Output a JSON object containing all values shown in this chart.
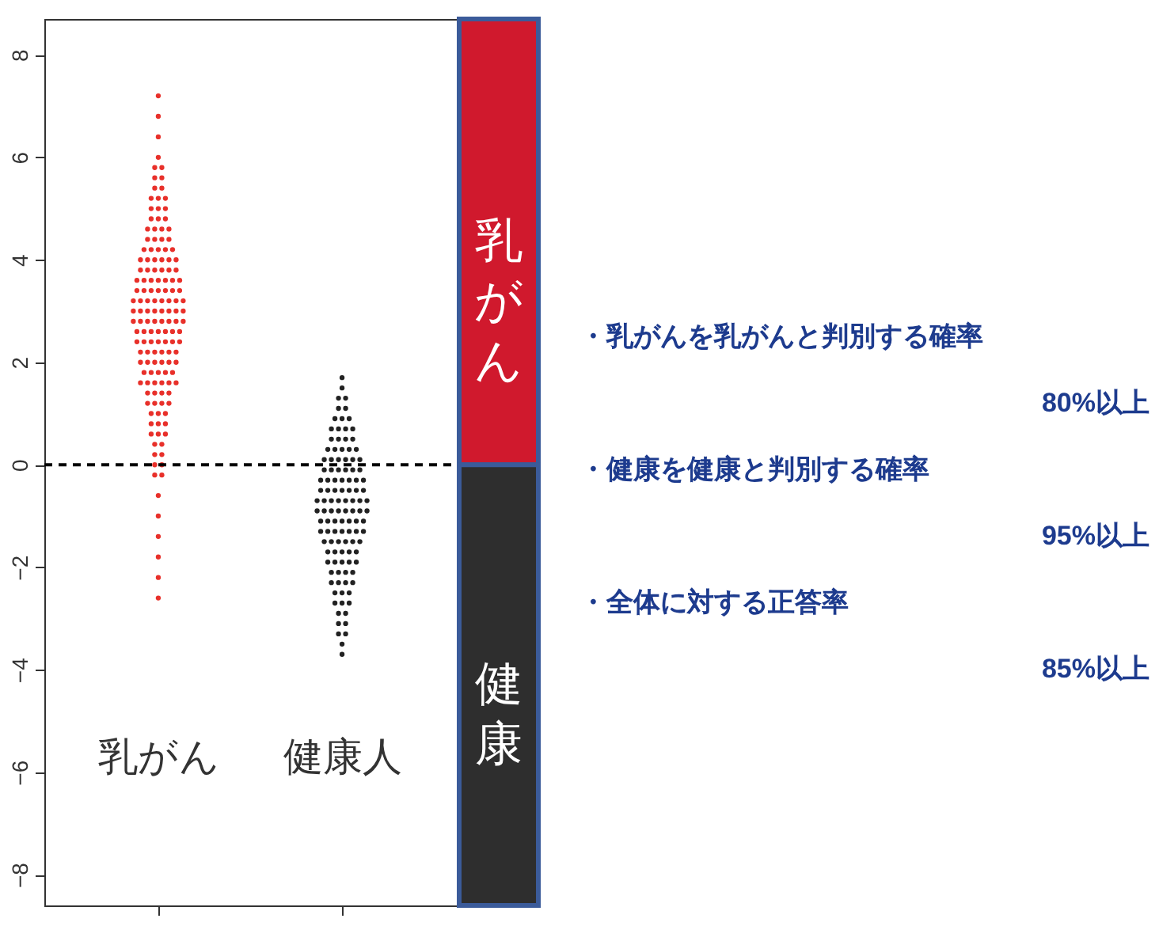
{
  "chart_data": {
    "type": "scatter",
    "marker": "circle",
    "categories": [
      "乳がん",
      "健康人"
    ],
    "ylim": [
      -8.6,
      8.7
    ],
    "yticks": [
      -8,
      -6,
      -4,
      -2,
      0,
      2,
      4,
      6,
      8
    ],
    "series": [
      {
        "color": "#e8302a",
        "x": [
          "乳がん",
          "乳がん",
          "乳がん",
          "乳がん",
          "乳がん",
          "乳がん",
          "乳がん",
          "乳がん",
          "乳がん",
          "乳がん",
          "乳がん",
          "乳がん",
          "乳がん",
          "乳がん",
          "乳がん",
          "乳がん",
          "乳がん",
          "乳がん",
          "乳がん",
          "乳がん",
          "乳がん",
          "乳がん",
          "乳がん",
          "乳がん",
          "乳がん",
          "乳がん",
          "乳がん",
          "乳がん",
          "乳がん",
          "乳がん",
          "乳がん",
          "乳がん",
          "乳がん",
          "乳がん",
          "乳がん",
          "乳がん",
          "乳がん",
          "乳がん",
          "乳がん",
          "乳がん",
          "乳がん",
          "乳がん",
          "乳がん",
          "乳がん",
          "乳がん",
          "乳がん",
          "乳がん",
          "乳がん",
          "乳がん",
          "乳がん",
          "乳がん",
          "乳がん",
          "乳がん",
          "乳がん",
          "乳がん",
          "乳がん",
          "乳がん",
          "乳がん",
          "乳がん",
          "乳がん",
          "乳がん",
          "乳がん",
          "乳がん",
          "乳がん",
          "乳がん",
          "乳がん",
          "乳がん",
          "乳がん",
          "乳がん",
          "乳がん",
          "乳がん",
          "乳がん",
          "乳がん",
          "乳がん",
          "乳がん",
          "乳がん",
          "乳がん",
          "乳がん",
          "乳がん",
          "乳がん",
          "乳がん",
          "乳がん",
          "乳がん",
          "乳がん",
          "乳がん",
          "乳がん",
          "乳がん",
          "乳がん",
          "乳がん",
          "乳がん",
          "乳がん",
          "乳がん",
          "乳がん",
          "乳がん",
          "乳がん",
          "乳がん",
          "乳がん",
          "乳がん",
          "乳がん",
          "乳がん",
          "乳がん",
          "乳がん",
          "乳がん",
          "乳がん",
          "乳がん",
          "乳がん",
          "乳がん",
          "乳がん",
          "乳がん",
          "乳がん",
          "乳がん",
          "乳がん",
          "乳がん",
          "乳がん",
          "乳がん",
          "乳がん",
          "乳がん",
          "乳がん",
          "乳がん",
          "乳がん",
          "乳がん",
          "乳がん",
          "乳がん",
          "乳がん",
          "乳がん",
          "乳がん",
          "乳がん",
          "乳がん",
          "乳がん",
          "乳がん",
          "乳がん",
          "乳がん",
          "乳がん",
          "乳がん",
          "乳がん",
          "乳がん",
          "乳がん",
          "乳がん",
          "乳がん",
          "乳がん",
          "乳がん",
          "乳がん",
          "乳がん",
          "乳がん",
          "乳がん",
          "乳がん",
          "乳がん",
          "乳がん",
          "乳がん",
          "乳がん"
        ],
        "values": [
          -2.6,
          -2.2,
          -1.8,
          -1.4,
          -1.0,
          -0.6,
          -0.2,
          -0.2,
          0,
          0,
          0.2,
          0.2,
          0.4,
          0.4,
          0.6,
          0.6,
          0.6,
          0.8,
          0.8,
          0.8,
          1.0,
          1.0,
          1.0,
          1.2,
          1.2,
          1.2,
          1.2,
          1.4,
          1.4,
          1.4,
          1.4,
          1.6,
          1.6,
          1.6,
          1.6,
          1.6,
          1.6,
          1.8,
          1.8,
          1.8,
          1.8,
          1.8,
          2.0,
          2.0,
          2.0,
          2.0,
          2.0,
          2.0,
          2.2,
          2.2,
          2.2,
          2.2,
          2.2,
          2.2,
          2.4,
          2.4,
          2.4,
          2.4,
          2.4,
          2.4,
          2.4,
          2.6,
          2.6,
          2.6,
          2.6,
          2.6,
          2.6,
          2.6,
          2.8,
          2.8,
          2.8,
          2.8,
          2.8,
          2.8,
          2.8,
          2.8,
          3.0,
          3.0,
          3.0,
          3.0,
          3.0,
          3.0,
          3.0,
          3.0,
          3.2,
          3.2,
          3.2,
          3.2,
          3.2,
          3.2,
          3.2,
          3.2,
          3.4,
          3.4,
          3.4,
          3.4,
          3.4,
          3.4,
          3.4,
          3.6,
          3.6,
          3.6,
          3.6,
          3.6,
          3.6,
          3.6,
          3.8,
          3.8,
          3.8,
          3.8,
          3.8,
          3.8,
          4.0,
          4.0,
          4.0,
          4.0,
          4.0,
          4.0,
          4.2,
          4.2,
          4.2,
          4.2,
          4.2,
          4.4,
          4.4,
          4.4,
          4.4,
          4.6,
          4.6,
          4.6,
          4.6,
          4.8,
          4.8,
          4.8,
          5.0,
          5.0,
          5.0,
          5.2,
          5.2,
          5.2,
          5.4,
          5.4,
          5.6,
          5.6,
          5.8,
          5.8,
          6.0,
          6.4,
          6.8,
          7.2
        ]
      },
      {
        "color": "#222222",
        "x": [
          "健康人",
          "健康人",
          "健康人",
          "健康人",
          "健康人",
          "健康人",
          "健康人",
          "健康人",
          "健康人",
          "健康人",
          "健康人",
          "健康人",
          "健康人",
          "健康人",
          "健康人",
          "健康人",
          "健康人",
          "健康人",
          "健康人",
          "健康人",
          "健康人",
          "健康人",
          "健康人",
          "健康人",
          "健康人",
          "健康人",
          "健康人",
          "健康人",
          "健康人",
          "健康人",
          "健康人",
          "健康人",
          "健康人",
          "健康人",
          "健康人",
          "健康人",
          "健康人",
          "健康人",
          "健康人",
          "健康人",
          "健康人",
          "健康人",
          "健康人",
          "健康人",
          "健康人",
          "健康人",
          "健康人",
          "健康人",
          "健康人",
          "健康人",
          "健康人",
          "健康人",
          "健康人",
          "健康人",
          "健康人",
          "健康人",
          "健康人",
          "健康人",
          "健康人",
          "健康人",
          "健康人",
          "健康人",
          "健康人",
          "健康人",
          "健康人",
          "健康人",
          "健康人",
          "健康人",
          "健康人",
          "健康人",
          "健康人",
          "健康人",
          "健康人",
          "健康人",
          "健康人",
          "健康人",
          "健康人",
          "健康人",
          "健康人",
          "健康人",
          "健康人",
          "健康人",
          "健康人",
          "健康人",
          "健康人",
          "健康人",
          "健康人",
          "健康人",
          "健康人",
          "健康人",
          "健康人",
          "健康人",
          "健康人",
          "健康人",
          "健康人",
          "健康人",
          "健康人",
          "健康人",
          "健康人",
          "健康人",
          "健康人",
          "健康人",
          "健康人",
          "健康人",
          "健康人",
          "健康人",
          "健康人",
          "健康人",
          "健康人",
          "健康人",
          "健康人",
          "健康人",
          "健康人",
          "健康人",
          "健康人",
          "健康人"
        ],
        "values": [
          -3.7,
          -3.5,
          -3.3,
          -3.3,
          -3.1,
          -3.1,
          -2.9,
          -2.9,
          -2.7,
          -2.7,
          -2.7,
          -2.5,
          -2.5,
          -2.5,
          -2.3,
          -2.3,
          -2.3,
          -2.3,
          -2.1,
          -2.1,
          -2.1,
          -2.1,
          -1.9,
          -1.9,
          -1.9,
          -1.9,
          -1.9,
          -1.7,
          -1.7,
          -1.7,
          -1.7,
          -1.7,
          -1.5,
          -1.5,
          -1.5,
          -1.5,
          -1.5,
          -1.5,
          -1.3,
          -1.3,
          -1.3,
          -1.3,
          -1.3,
          -1.3,
          -1.3,
          -1.1,
          -1.1,
          -1.1,
          -1.1,
          -1.1,
          -1.1,
          -1.1,
          -0.9,
          -0.9,
          -0.9,
          -0.9,
          -0.9,
          -0.9,
          -0.9,
          -0.9,
          -0.7,
          -0.7,
          -0.7,
          -0.7,
          -0.7,
          -0.7,
          -0.7,
          -0.7,
          -0.5,
          -0.5,
          -0.5,
          -0.5,
          -0.5,
          -0.5,
          -0.5,
          -0.3,
          -0.3,
          -0.3,
          -0.3,
          -0.3,
          -0.3,
          -0.3,
          -0.1,
          -0.1,
          -0.1,
          -0.1,
          -0.1,
          -0.1,
          0.1,
          0.1,
          0.1,
          0.1,
          0.1,
          0.1,
          0.3,
          0.3,
          0.3,
          0.3,
          0.3,
          0.5,
          0.5,
          0.5,
          0.5,
          0.7,
          0.7,
          0.7,
          0.7,
          0.9,
          0.9,
          0.9,
          1.1,
          1.1,
          1.3,
          1.3,
          1.5,
          1.7
        ]
      }
    ],
    "ref_lines": [
      {
        "axis": "y",
        "value": 0,
        "line_style": "dashed",
        "color": "#000000"
      }
    ],
    "bands": [
      {
        "axis": "y",
        "from": 0,
        "to": 8.7,
        "label": "乳がん",
        "color": "#d0192d"
      },
      {
        "axis": "y",
        "from": -8.6,
        "to": 0,
        "label": "健康",
        "color": "#2e2e2e"
      }
    ],
    "annotations": [
      "・乳がんを乳がんと判別する確率",
      "80%以上",
      "・健康を健康と判別する確率",
      "95%以上",
      "・全体に対する正答率",
      "85%以上"
    ]
  }
}
